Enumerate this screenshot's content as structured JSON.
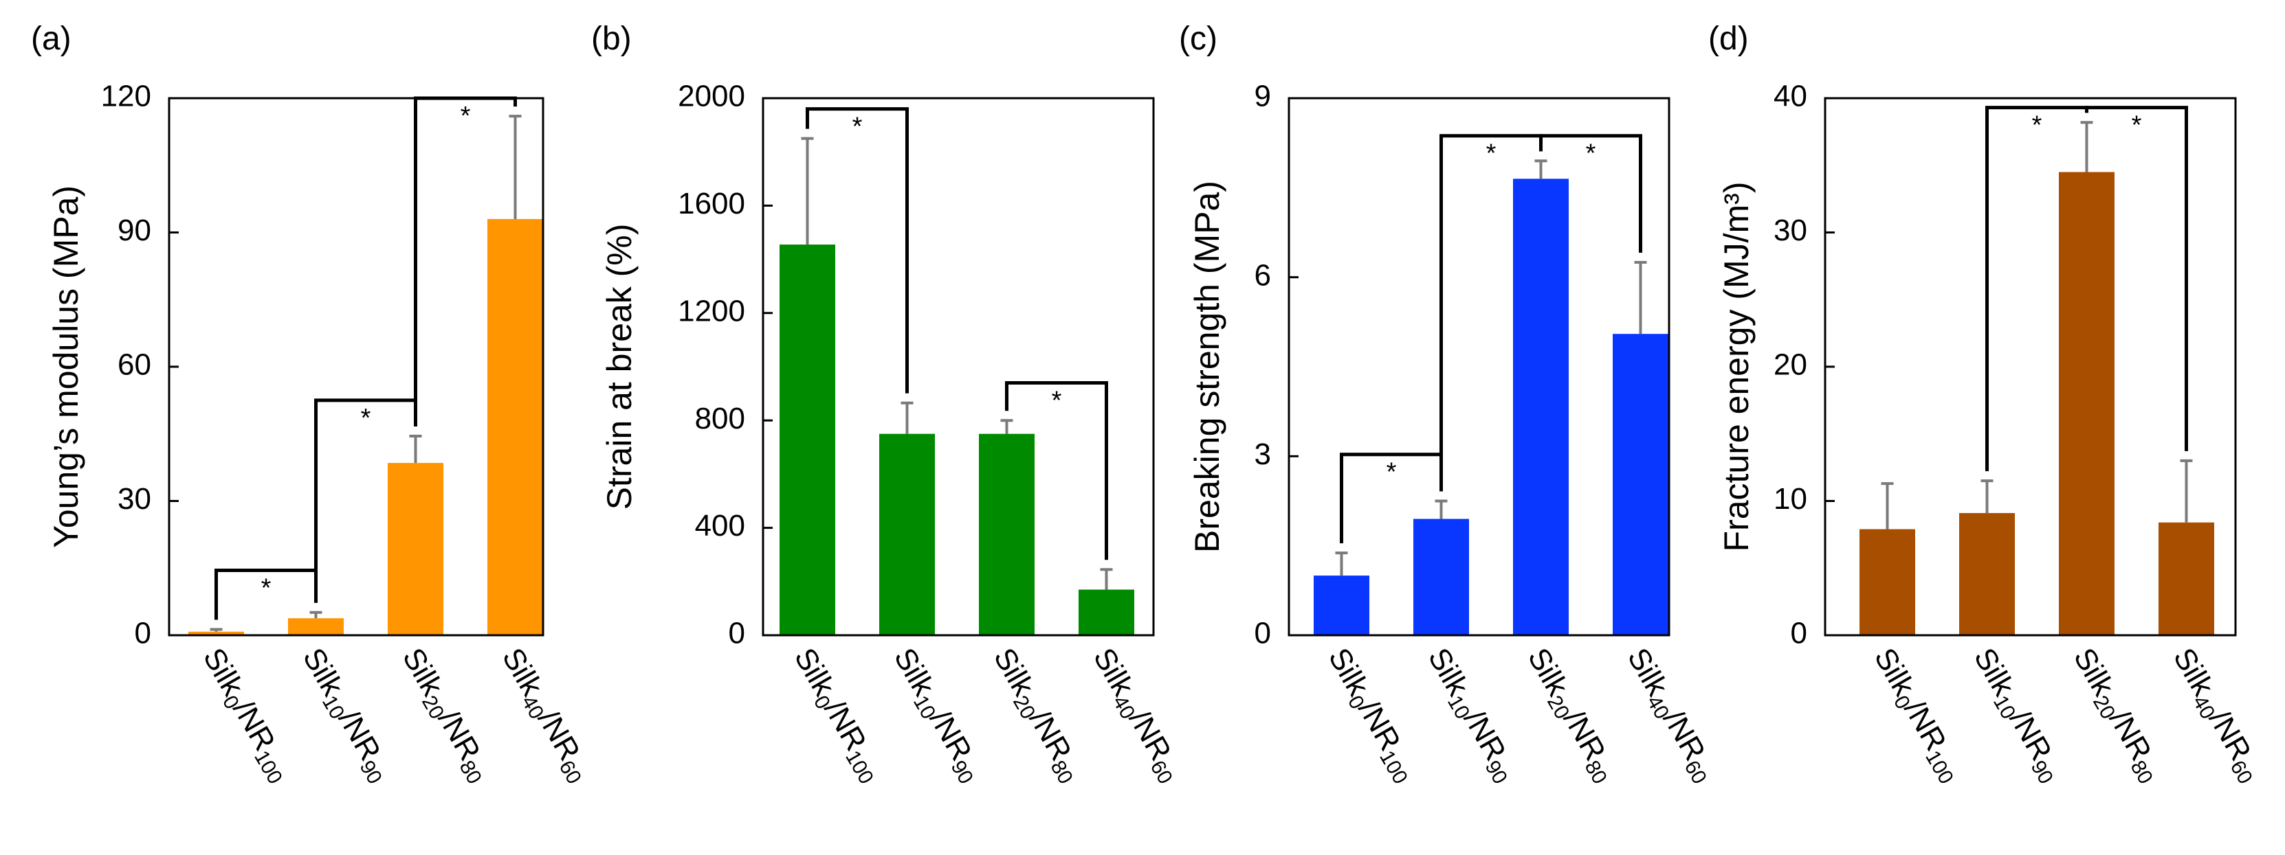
{
  "chart_data": [
    {
      "panel": "(a)",
      "type": "bar",
      "ylabel": "Young’s modulus (MPa)",
      "ylim": [
        0,
        120
      ],
      "yticks": [
        "0",
        "30",
        "60",
        "90",
        "120"
      ],
      "categories": [
        {
          "base": "Silk",
          "sub1": "0",
          "mid": "/NR",
          "sub2": "100"
        },
        {
          "base": "Silk",
          "sub1": "10",
          "mid": "/NR",
          "sub2": "90"
        },
        {
          "base": "Silk",
          "sub1": "20",
          "mid": "/NR",
          "sub2": "80"
        },
        {
          "base": "Silk",
          "sub1": "40",
          "mid": "/NR",
          "sub2": "60"
        }
      ],
      "values": [
        0.8,
        3.8,
        38.5,
        93
      ],
      "errors": [
        0.5,
        1.3,
        6,
        23
      ],
      "color": "#FF9500",
      "significance": [
        {
          "from": 0,
          "to": 1,
          "y": 14.5,
          "label": "*"
        },
        {
          "from": 1,
          "to": 2,
          "y": 52.5,
          "label": "*"
        },
        {
          "from": 2,
          "to": 3,
          "y": 120,
          "label": "*"
        }
      ]
    },
    {
      "panel": "(b)",
      "type": "bar",
      "ylabel": "Strain at break (%)",
      "ylim": [
        0,
        2000
      ],
      "yticks": [
        "0",
        "400",
        "800",
        "1200",
        "1600",
        "2000"
      ],
      "categories": [
        {
          "base": "Silk",
          "sub1": "0",
          "mid": "/NR",
          "sub2": "100"
        },
        {
          "base": "Silk",
          "sub1": "10",
          "mid": "/NR",
          "sub2": "90"
        },
        {
          "base": "Silk",
          "sub1": "20",
          "mid": "/NR",
          "sub2": "80"
        },
        {
          "base": "Silk",
          "sub1": "40",
          "mid": "/NR",
          "sub2": "60"
        }
      ],
      "values": [
        1455,
        750,
        750,
        170
      ],
      "errors": [
        395,
        115,
        50,
        75
      ],
      "color": "#008A00",
      "significance": [
        {
          "from": 0,
          "to": 1,
          "y": 1960,
          "label": "*"
        },
        {
          "from": 2,
          "to": 3,
          "y": 940,
          "label": "*"
        }
      ]
    },
    {
      "panel": "(c)",
      "type": "bar",
      "ylabel": "Breaking strength (MPa)",
      "ylim": [
        0,
        9
      ],
      "yticks": [
        "0",
        "3",
        "6",
        "9"
      ],
      "categories": [
        {
          "base": "Silk",
          "sub1": "0",
          "mid": "/NR",
          "sub2": "100"
        },
        {
          "base": "Silk",
          "sub1": "10",
          "mid": "/NR",
          "sub2": "90"
        },
        {
          "base": "Silk",
          "sub1": "20",
          "mid": "/NR",
          "sub2": "80"
        },
        {
          "base": "Silk",
          "sub1": "40",
          "mid": "/NR",
          "sub2": "60"
        }
      ],
      "values": [
        1.0,
        1.95,
        7.65,
        5.05
      ],
      "errors": [
        0.38,
        0.3,
        0.3,
        1.2
      ],
      "color": "#0A37FF",
      "significance": [
        {
          "from": 0,
          "to": 1,
          "y": 3.03,
          "label": "*"
        },
        {
          "from": 1,
          "to": 2,
          "y": 8.37,
          "label": "*"
        },
        {
          "from": 2,
          "to": 3,
          "y": 8.37,
          "label": "*"
        }
      ]
    },
    {
      "panel": "(d)",
      "type": "bar",
      "ylabel": "Fracture energy (MJ/m³)",
      "ylim": [
        0,
        40
      ],
      "yticks": [
        "0",
        "10",
        "20",
        "30",
        "40"
      ],
      "categories": [
        {
          "base": "Silk",
          "sub1": "0",
          "mid": "/NR",
          "sub2": "100"
        },
        {
          "base": "Silk",
          "sub1": "10",
          "mid": "/NR",
          "sub2": "90"
        },
        {
          "base": "Silk",
          "sub1": "20",
          "mid": "/NR",
          "sub2": "80"
        },
        {
          "base": "Silk",
          "sub1": "40",
          "mid": "/NR",
          "sub2": "60"
        }
      ],
      "values": [
        7.9,
        9.1,
        34.5,
        8.4
      ],
      "errors": [
        3.4,
        2.4,
        3.7,
        4.6
      ],
      "color": "#A84E00",
      "significance": [
        {
          "from": 1,
          "to": 2,
          "y": 39.3,
          "label": "*"
        },
        {
          "from": 2,
          "to": 3,
          "y": 39.3,
          "label": "*"
        }
      ]
    }
  ]
}
